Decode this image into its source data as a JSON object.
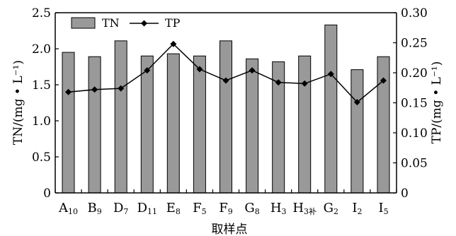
{
  "chart_data": {
    "type": "bar",
    "xlabel": "取样点",
    "ylabel_left": "TN/(mg • L⁻¹)",
    "ylabel_right": "TP/(mg • L⁻¹)",
    "categories": [
      {
        "base": "A",
        "sub": "10"
      },
      {
        "base": "B",
        "sub": "9"
      },
      {
        "base": "D",
        "sub": "7"
      },
      {
        "base": "D",
        "sub": "11"
      },
      {
        "base": "E",
        "sub": "8"
      },
      {
        "base": "F",
        "sub": "5"
      },
      {
        "base": "F",
        "sub": "9"
      },
      {
        "base": "G",
        "sub": "8"
      },
      {
        "base": "H",
        "sub": "3"
      },
      {
        "base": "H",
        "sub": "3补"
      },
      {
        "base": "G",
        "sub": "2"
      },
      {
        "base": "I",
        "sub": "2"
      },
      {
        "base": "I",
        "sub": "5"
      }
    ],
    "series": [
      {
        "name": "TN",
        "kind": "bar",
        "axis": "left",
        "color": "#999999",
        "values": [
          1.95,
          1.89,
          2.11,
          1.9,
          1.93,
          1.9,
          2.11,
          1.86,
          1.82,
          1.9,
          2.33,
          1.71,
          1.89
        ]
      },
      {
        "name": "TP",
        "kind": "line",
        "axis": "right",
        "color": "#000000",
        "marker": "diamond",
        "values": [
          0.168,
          0.172,
          0.174,
          0.204,
          0.248,
          0.206,
          0.187,
          0.204,
          0.184,
          0.182,
          0.198,
          0.151,
          0.187
        ]
      }
    ],
    "ylim_left": [
      0,
      2.5
    ],
    "yticks_left": [
      "0",
      "0.5",
      "1.0",
      "1.5",
      "2.0",
      "2.5"
    ],
    "ylim_right": [
      0,
      0.3
    ],
    "yticks_right": [
      "0",
      "0.05",
      "0.10",
      "0.15",
      "0.20",
      "0.25",
      "0.30"
    ],
    "grid": false,
    "legend_position": "top-left"
  }
}
